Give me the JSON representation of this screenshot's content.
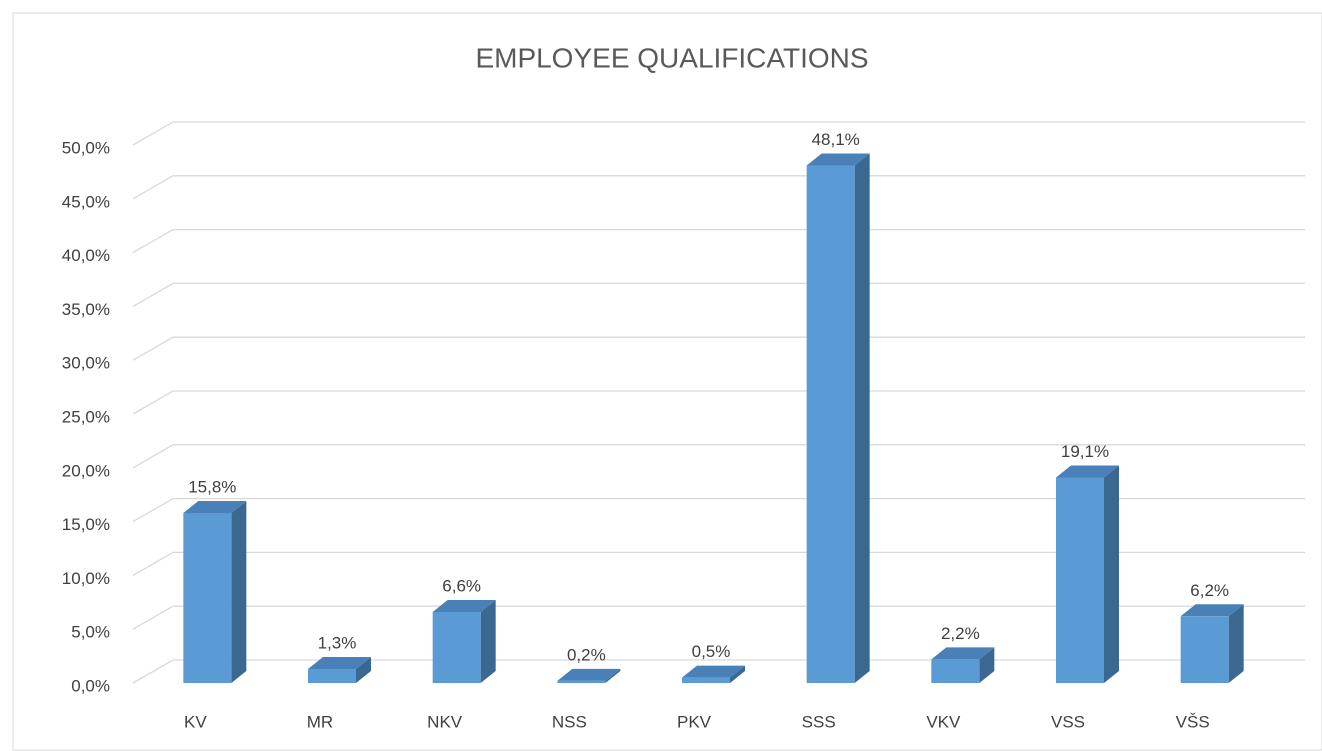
{
  "chart_data": {
    "type": "bar3d",
    "title": "EMPLOYEE QUALIFICATIONS",
    "categories": [
      "KV",
      "MR",
      "NKV",
      "NSS",
      "PKV",
      "SSS",
      "VKV",
      "VSS",
      "VŠS"
    ],
    "values": [
      15.8,
      1.3,
      6.6,
      0.2,
      0.5,
      48.1,
      2.2,
      19.1,
      6.2
    ],
    "value_labels": [
      "15,8%",
      "1,3%",
      "6,6%",
      "0,2%",
      "0,5%",
      "48,1%",
      "2,2%",
      "19,1%",
      "6,2%"
    ],
    "color": "#5b9bd5",
    "ylim": [
      0,
      50
    ],
    "yticks": [
      {
        "value": 0,
        "label": "0,0%"
      },
      {
        "value": 5,
        "label": "5,0%"
      },
      {
        "value": 10,
        "label": "10,0%"
      },
      {
        "value": 15,
        "label": "15,0%"
      },
      {
        "value": 20,
        "label": "20,0%"
      },
      {
        "value": 25,
        "label": "25,0%"
      },
      {
        "value": 30,
        "label": "30,0%"
      },
      {
        "value": 35,
        "label": "35,0%"
      },
      {
        "value": 40,
        "label": "40,0%"
      },
      {
        "value": 45,
        "label": "45,0%"
      },
      {
        "value": 50,
        "label": "50,0%"
      }
    ],
    "grid": true
  }
}
